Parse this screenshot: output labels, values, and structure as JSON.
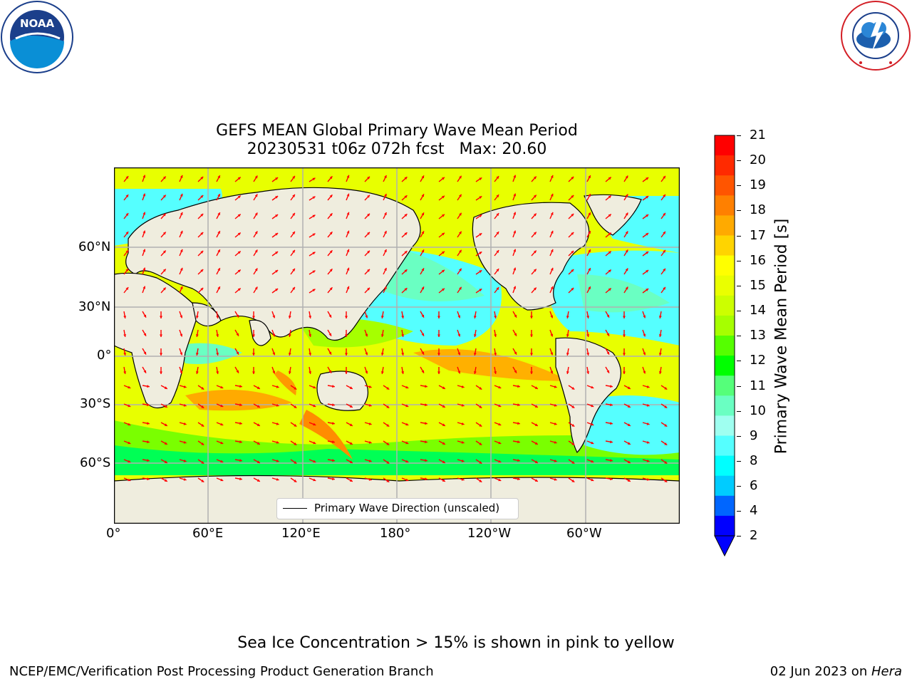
{
  "logos": {
    "noaa": {
      "center_text": "NOAA",
      "ring_text": "NATIONAL OCEANIC AND ATMOSPHERIC ADMINISTRATION · U.S. DEPARTMENT OF COMMERCE"
    },
    "nws": {
      "ring_text": "NATIONAL WEATHER SERVICE"
    }
  },
  "title": {
    "line1": "GEFS MEAN Global Primary Wave Mean Period",
    "line2": "20230531 t06z 072h fcst   Max: 20.60"
  },
  "map": {
    "lat_ticks": [
      "60°N",
      "30°N",
      "0°",
      "30°S",
      "60°S"
    ],
    "lon_ticks": [
      "0°",
      "60°E",
      "120°E",
      "180°",
      "120°W",
      "60°W"
    ],
    "legend": "Primary Wave Direction (unscaled)",
    "land_color": "#efedde",
    "arrow_color": "#ff0000",
    "grid_color": "#b0b0b0"
  },
  "colorbar": {
    "label": "Primary Wave Mean Period [s]",
    "ticks": [
      "21",
      "20",
      "19",
      "18",
      "17",
      "16",
      "15",
      "14",
      "13",
      "12",
      "11",
      "10",
      "9",
      "8",
      "6",
      "4",
      "2"
    ],
    "colors": [
      "#ff0000",
      "#ff2a00",
      "#ff5500",
      "#ff8000",
      "#ffaa00",
      "#ffd400",
      "#ffff00",
      "#eaff00",
      "#ccff00",
      "#a6ff00",
      "#55ff00",
      "#00ff00",
      "#55ff7a",
      "#6affc2",
      "#9ffff0",
      "#55ffff",
      "#00ffff",
      "#00ccff",
      "#0066ff",
      "#0000ff"
    ],
    "extend_color": "#0000ff"
  },
  "footer": {
    "note": "Sea Ice Concentration > 15% is shown in pink to yellow",
    "left": "NCEP/EMC/Verification Post Processing Product Generation Branch",
    "right_date": "02 Jun 2023 on ",
    "right_host": "Hera"
  }
}
